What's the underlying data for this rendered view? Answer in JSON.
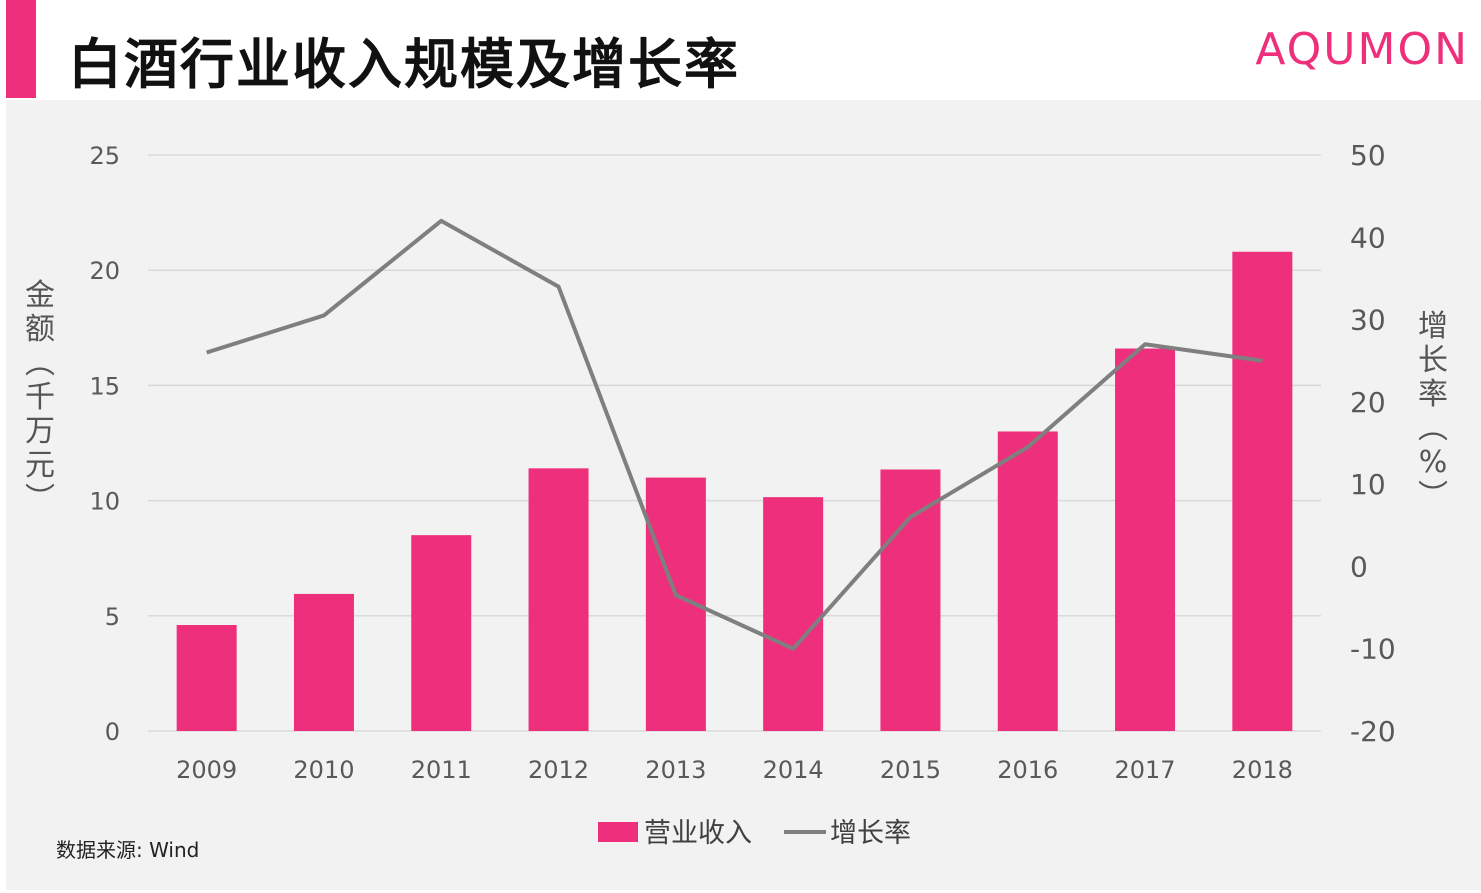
{
  "header": {
    "title": "白酒行业收入规模及增长率",
    "brand": "AQUMON"
  },
  "footer": {
    "source": "数据来源: Wind"
  },
  "colors": {
    "accent": "#ee2f7b",
    "bar": "#ee2f7b",
    "line": "#7f7f7f",
    "grid": "#d9d9d9",
    "panel": "#f2f2f2"
  },
  "chart_data": {
    "type": "bar",
    "categories": [
      "2009",
      "2010",
      "2011",
      "2012",
      "2013",
      "2014",
      "2015",
      "2016",
      "2017",
      "2018"
    ],
    "series": [
      {
        "name": "营业收入",
        "type": "bar",
        "axis": "left",
        "values": [
          4.6,
          5.95,
          8.5,
          11.4,
          11.0,
          10.15,
          11.35,
          13.0,
          16.6,
          20.8
        ]
      },
      {
        "name": "增长率",
        "type": "line",
        "axis": "right",
        "values": [
          26,
          30.5,
          42,
          34,
          -3.5,
          -10,
          6,
          14.5,
          27,
          25
        ]
      }
    ],
    "ylabel": "金额（千万元）",
    "ylim": [
      0,
      25
    ],
    "yticks": [
      "0",
      "5",
      "10",
      "15",
      "20",
      "25"
    ],
    "y2label": "增长率（%）",
    "y2lim": [
      -20,
      50
    ],
    "y2ticks": [
      "-20",
      "-10",
      "0",
      "10",
      "20",
      "30",
      "40",
      "50"
    ],
    "grid": true,
    "legend": "bottom-center"
  }
}
